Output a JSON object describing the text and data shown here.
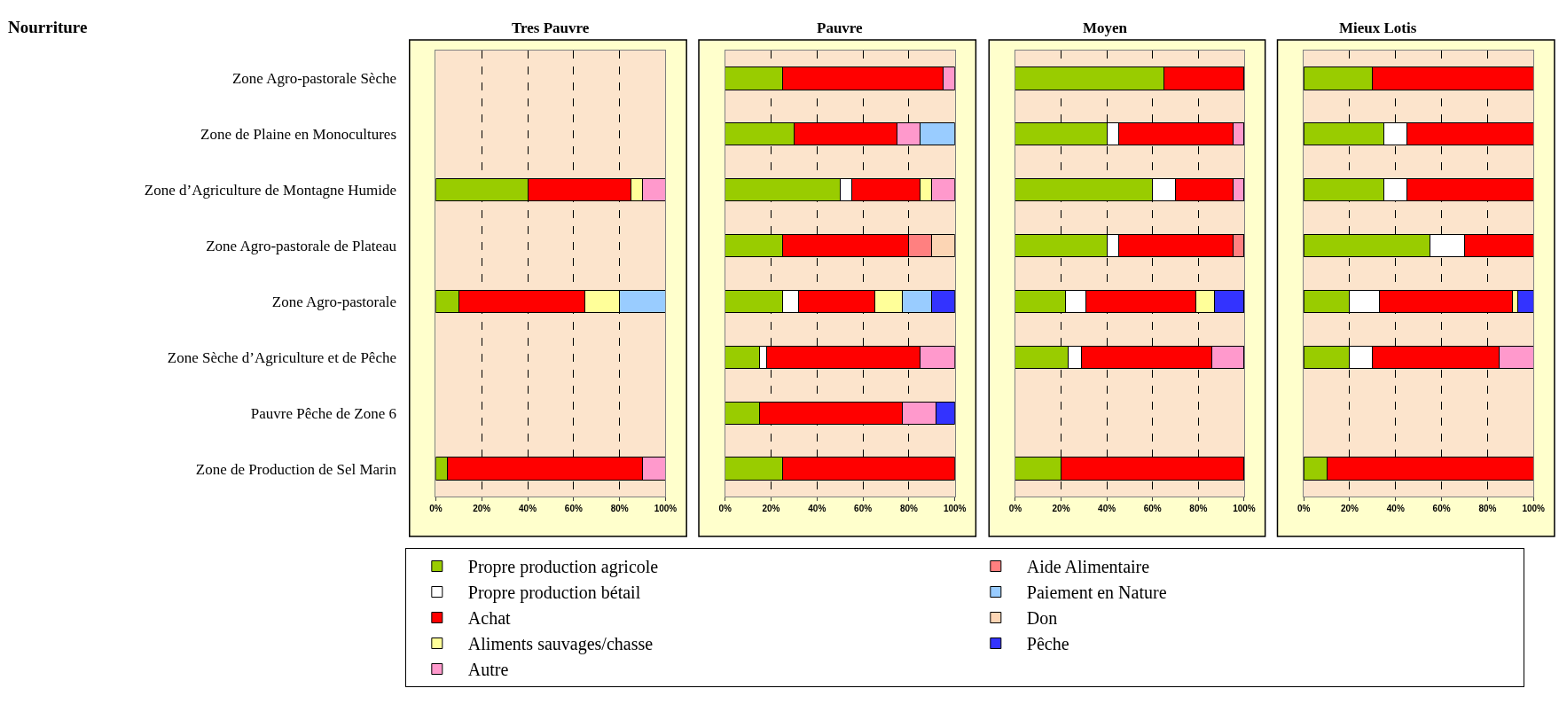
{
  "chart_data": [
    {
      "type": "bar",
      "orientation": "horizontal",
      "stacked": true,
      "title": "Tres Pauvre",
      "annotations": [
        "Nourriture"
      ],
      "categories": [
        "Zone Agro-pastorale Sèche",
        "Zone de Plaine en Monocultures",
        "Zone d’Agriculture de Montagne Humide",
        "Zone Agro-pastorale de Plateau",
        "Zone Agro-pastorale",
        "Zone Sèche d’Agriculture et de Pêche",
        "Pauvre Pêche de Zone 6",
        "Zone de Production de Sel Marin"
      ],
      "xlim": [
        0,
        100
      ],
      "xticks": [
        {
          "value": 0,
          "label": "0%"
        },
        {
          "value": 20,
          "label": "20%"
        },
        {
          "value": 40,
          "label": "40%"
        },
        {
          "value": 60,
          "label": "60%"
        },
        {
          "value": 80,
          "label": "80%"
        },
        {
          "value": 100,
          "label": "100%"
        }
      ],
      "grid": "x",
      "legend": "bottom",
      "series": [
        {
          "name": "Propre production agricole",
          "color": "#99cc00",
          "values": [
            null,
            null,
            40,
            null,
            10,
            null,
            null,
            5
          ]
        },
        {
          "name": "Propre production bétail",
          "color": "#ffffff",
          "values": [
            null,
            null,
            null,
            null,
            null,
            null,
            null,
            null
          ]
        },
        {
          "name": "Achat",
          "color": "#ff0000",
          "values": [
            null,
            null,
            45,
            null,
            55,
            null,
            null,
            85
          ]
        },
        {
          "name": "Aliments sauvages/chasse",
          "color": "#ffff99",
          "values": [
            null,
            null,
            5,
            null,
            15,
            null,
            null,
            null
          ]
        },
        {
          "name": "Autre",
          "color": "#ff99cc",
          "values": [
            null,
            null,
            10,
            null,
            null,
            null,
            null,
            10
          ]
        },
        {
          "name": "Aide Alimentaire",
          "color": "#ff8080",
          "values": [
            null,
            null,
            null,
            null,
            null,
            null,
            null,
            null
          ]
        },
        {
          "name": "Paiement en Nature",
          "color": "#99ccff",
          "values": [
            null,
            null,
            null,
            null,
            20,
            null,
            null,
            null
          ]
        },
        {
          "name": "Don",
          "color": "#fcd5b4",
          "values": [
            null,
            null,
            null,
            null,
            null,
            null,
            null,
            null
          ]
        },
        {
          "name": "Pêche",
          "color": "#3333ff",
          "values": [
            null,
            null,
            null,
            null,
            null,
            null,
            null,
            null
          ]
        }
      ]
    },
    {
      "type": "bar",
      "orientation": "horizontal",
      "stacked": true,
      "title": "Pauvre",
      "tick_labels": "x",
      "categories": [
        "Zone Agro-pastorale Sèche",
        "Zone de Plaine en Monocultures",
        "Zone d’Agriculture de Montagne Humide",
        "Zone Agro-pastorale de Plateau",
        "Zone Agro-pastorale",
        "Zone Sèche d’Agriculture et de Pêche",
        "Pauvre Pêche de Zone 6",
        "Zone de Production de Sel Marin"
      ],
      "xlim": [
        0,
        100
      ],
      "xticks": [
        {
          "value": 0,
          "label": "0%"
        },
        {
          "value": 20,
          "label": "20%"
        },
        {
          "value": 40,
          "label": "40%"
        },
        {
          "value": 60,
          "label": "60%"
        },
        {
          "value": 80,
          "label": "80%"
        },
        {
          "value": 100,
          "label": "100%"
        }
      ],
      "grid": "x",
      "series": [
        {
          "color": "#99cc00",
          "values": [
            25,
            30,
            50,
            25,
            25,
            15,
            15,
            25
          ]
        },
        {
          "color": "#ffffff",
          "values": [
            null,
            null,
            5,
            null,
            7,
            3,
            null,
            null
          ]
        },
        {
          "color": "#ff0000",
          "values": [
            70,
            45,
            30,
            55,
            33,
            67,
            62,
            75
          ]
        },
        {
          "color": "#ffff99",
          "values": [
            null,
            null,
            5,
            null,
            12,
            null,
            null,
            null
          ]
        },
        {
          "color": "#ff99cc",
          "values": [
            5,
            10,
            10,
            null,
            null,
            15,
            15,
            null
          ]
        },
        {
          "color": "#ff8080",
          "values": [
            null,
            null,
            null,
            10,
            null,
            null,
            null,
            null
          ]
        },
        {
          "color": "#99ccff",
          "values": [
            null,
            15,
            null,
            null,
            13,
            null,
            null,
            null
          ]
        },
        {
          "color": "#fcd5b4",
          "values": [
            null,
            null,
            null,
            10,
            null,
            null,
            null,
            null
          ]
        },
        {
          "color": "#3333ff",
          "values": [
            null,
            null,
            null,
            null,
            10,
            null,
            8,
            null
          ]
        }
      ]
    },
    {
      "type": "bar",
      "orientation": "horizontal",
      "stacked": true,
      "title": "Moyen",
      "tick_labels": "x",
      "categories": [
        "Zone Agro-pastorale Sèche",
        "Zone de Plaine en Monocultures",
        "Zone d’Agriculture de Montagne Humide",
        "Zone Agro-pastorale de Plateau",
        "Zone Agro-pastorale",
        "Zone Sèche d’Agriculture et de Pêche",
        "Pauvre Pêche de Zone 6",
        "Zone de Production de Sel Marin"
      ],
      "xlim": [
        0,
        100
      ],
      "xticks": [
        {
          "value": 0,
          "label": "0%"
        },
        {
          "value": 20,
          "label": "20%"
        },
        {
          "value": 40,
          "label": "40%"
        },
        {
          "value": 60,
          "label": "60%"
        },
        {
          "value": 80,
          "label": "80%"
        },
        {
          "value": 100,
          "label": "100%"
        }
      ],
      "grid": "x",
      "series": [
        {
          "color": "#99cc00",
          "values": [
            65,
            40,
            60,
            40,
            22,
            23,
            null,
            20
          ]
        },
        {
          "color": "#ffffff",
          "values": [
            null,
            5,
            10,
            5,
            9,
            6,
            null,
            null
          ]
        },
        {
          "color": "#ff0000",
          "values": [
            35,
            50,
            25,
            50,
            48,
            57,
            null,
            80
          ]
        },
        {
          "color": "#ffff99",
          "values": [
            null,
            null,
            null,
            null,
            8,
            null,
            null,
            null
          ]
        },
        {
          "color": "#ff99cc",
          "values": [
            null,
            5,
            5,
            null,
            null,
            14,
            null,
            null
          ]
        },
        {
          "color": "#ff8080",
          "values": [
            null,
            null,
            null,
            5,
            null,
            null,
            null,
            null
          ]
        },
        {
          "color": "#3333ff",
          "values": [
            null,
            null,
            null,
            null,
            13,
            null,
            null,
            null
          ]
        }
      ]
    },
    {
      "type": "bar",
      "orientation": "horizontal",
      "stacked": true,
      "title": "Mieux Lotis",
      "tick_labels": "x",
      "categories": [
        "Zone Agro-pastorale Sèche",
        "Zone de Plaine en Monocultures",
        "Zone d’Agriculture de Montagne Humide",
        "Zone Agro-pastorale de Plateau",
        "Zone Agro-pastorale",
        "Zone Sèche d’Agriculture et de Pêche",
        "Pauvre Pêche de Zone 6",
        "Zone de Production de Sel Marin"
      ],
      "xlim": [
        0,
        100
      ],
      "xticks": [
        {
          "value": 0,
          "label": "0%"
        },
        {
          "value": 20,
          "label": "20%"
        },
        {
          "value": 40,
          "label": "40%"
        },
        {
          "value": 60,
          "label": "60%"
        },
        {
          "value": 80,
          "label": "80%"
        },
        {
          "value": 100,
          "label": "100%"
        }
      ],
      "grid": "x",
      "series": [
        {
          "color": "#99cc00",
          "values": [
            30,
            35,
            35,
            55,
            20,
            20,
            null,
            10
          ]
        },
        {
          "color": "#ffffff",
          "values": [
            null,
            10,
            10,
            15,
            13,
            10,
            null,
            null
          ]
        },
        {
          "color": "#ff0000",
          "values": [
            70,
            55,
            55,
            30,
            58,
            55,
            null,
            90
          ]
        },
        {
          "color": "#ffff99",
          "values": [
            null,
            null,
            null,
            null,
            2,
            null,
            null,
            null
          ]
        },
        {
          "color": "#ff99cc",
          "values": [
            null,
            null,
            null,
            null,
            null,
            15,
            null,
            null
          ]
        },
        {
          "color": "#3333ff",
          "values": [
            null,
            null,
            null,
            null,
            7,
            null,
            null,
            null
          ]
        }
      ]
    }
  ]
}
